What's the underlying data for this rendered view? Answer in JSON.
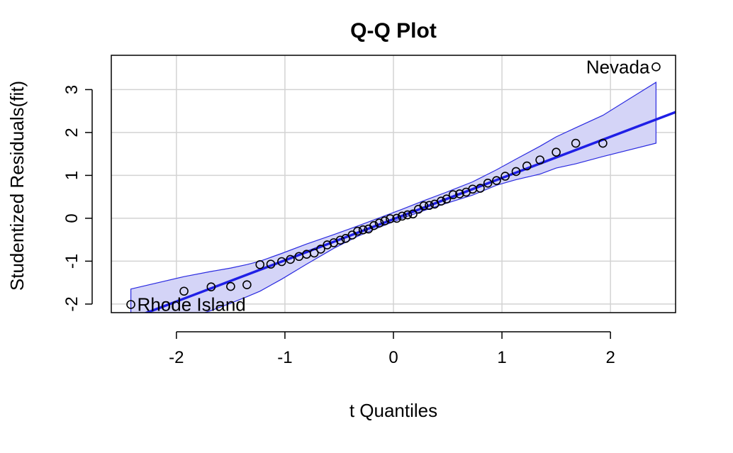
{
  "chart_data": {
    "type": "scatter",
    "title": "Q-Q Plot",
    "xlabel": "t Quantiles",
    "ylabel": "Studentized Residuals(fit)",
    "xlim": [
      -2.6,
      2.6
    ],
    "ylim": [
      -2.2,
      3.8
    ],
    "xticks": [
      -2,
      -1,
      0,
      1,
      2
    ],
    "yticks": [
      -2,
      -1,
      0,
      1,
      2,
      3
    ],
    "grid": true,
    "colors": {
      "reference": "#1f1fe6",
      "band_fill": "#d4d4f7",
      "band_edge": "#2a2ae0",
      "points": "#000000",
      "grid": "#d3d3d3"
    },
    "reference_line": {
      "intercept": -0.02,
      "slope": 0.96
    },
    "points": [
      {
        "x": -2.42,
        "y": -2.01
      },
      {
        "x": -1.93,
        "y": -1.7
      },
      {
        "x": -1.68,
        "y": -1.6
      },
      {
        "x": -1.5,
        "y": -1.59
      },
      {
        "x": -1.35,
        "y": -1.55
      },
      {
        "x": -1.23,
        "y": -1.08
      },
      {
        "x": -1.13,
        "y": -1.07
      },
      {
        "x": -1.03,
        "y": -1.01
      },
      {
        "x": -0.95,
        "y": -0.96
      },
      {
        "x": -0.87,
        "y": -0.89
      },
      {
        "x": -0.8,
        "y": -0.84
      },
      {
        "x": -0.73,
        "y": -0.81
      },
      {
        "x": -0.67,
        "y": -0.72
      },
      {
        "x": -0.61,
        "y": -0.62
      },
      {
        "x": -0.55,
        "y": -0.57
      },
      {
        "x": -0.49,
        "y": -0.51
      },
      {
        "x": -0.44,
        "y": -0.47
      },
      {
        "x": -0.38,
        "y": -0.39
      },
      {
        "x": -0.33,
        "y": -0.3
      },
      {
        "x": -0.28,
        "y": -0.27
      },
      {
        "x": -0.23,
        "y": -0.25
      },
      {
        "x": -0.18,
        "y": -0.17
      },
      {
        "x": -0.13,
        "y": -0.11
      },
      {
        "x": -0.08,
        "y": -0.06
      },
      {
        "x": -0.03,
        "y": -0.01
      },
      {
        "x": 0.03,
        "y": 0.0
      },
      {
        "x": 0.08,
        "y": 0.05
      },
      {
        "x": 0.13,
        "y": 0.08
      },
      {
        "x": 0.18,
        "y": 0.1
      },
      {
        "x": 0.23,
        "y": 0.21
      },
      {
        "x": 0.28,
        "y": 0.29
      },
      {
        "x": 0.33,
        "y": 0.3
      },
      {
        "x": 0.38,
        "y": 0.33
      },
      {
        "x": 0.44,
        "y": 0.4
      },
      {
        "x": 0.49,
        "y": 0.45
      },
      {
        "x": 0.55,
        "y": 0.55
      },
      {
        "x": 0.61,
        "y": 0.57
      },
      {
        "x": 0.67,
        "y": 0.61
      },
      {
        "x": 0.73,
        "y": 0.68
      },
      {
        "x": 0.8,
        "y": 0.7
      },
      {
        "x": 0.87,
        "y": 0.82
      },
      {
        "x": 0.95,
        "y": 0.88
      },
      {
        "x": 1.03,
        "y": 0.98
      },
      {
        "x": 1.13,
        "y": 1.09
      },
      {
        "x": 1.23,
        "y": 1.22
      },
      {
        "x": 1.35,
        "y": 1.36
      },
      {
        "x": 1.5,
        "y": 1.54
      },
      {
        "x": 1.68,
        "y": 1.75
      },
      {
        "x": 1.93,
        "y": 1.75
      },
      {
        "x": 2.42,
        "y": 3.53
      }
    ],
    "band": {
      "x": [
        -2.42,
        -1.93,
        -1.68,
        -1.5,
        -1.35,
        -1.23,
        -1.03,
        -0.8,
        -0.55,
        -0.33,
        -0.13,
        0.08,
        0.28,
        0.49,
        0.73,
        0.95,
        1.13,
        1.35,
        1.5,
        1.68,
        1.93,
        2.42
      ],
      "upper": [
        -1.65,
        -1.36,
        -1.24,
        -1.16,
        -1.08,
        -1.0,
        -0.82,
        -0.6,
        -0.38,
        -0.18,
        0.01,
        0.21,
        0.41,
        0.61,
        0.85,
        1.13,
        1.38,
        1.68,
        1.9,
        2.11,
        2.4,
        3.17
      ],
      "lower": [
        -2.62,
        -2.36,
        -2.15,
        -1.98,
        -1.83,
        -1.7,
        -1.42,
        -1.07,
        -0.7,
        -0.42,
        -0.21,
        0.0,
        0.18,
        0.35,
        0.54,
        0.77,
        0.9,
        1.03,
        1.17,
        1.27,
        1.44,
        1.75
      ]
    },
    "labeled_points": [
      {
        "label": "Nevada",
        "x": 2.42,
        "y": 3.53,
        "side": "left"
      },
      {
        "label": "Rhode Island",
        "x": -2.42,
        "y": -2.01,
        "side": "right"
      }
    ]
  }
}
